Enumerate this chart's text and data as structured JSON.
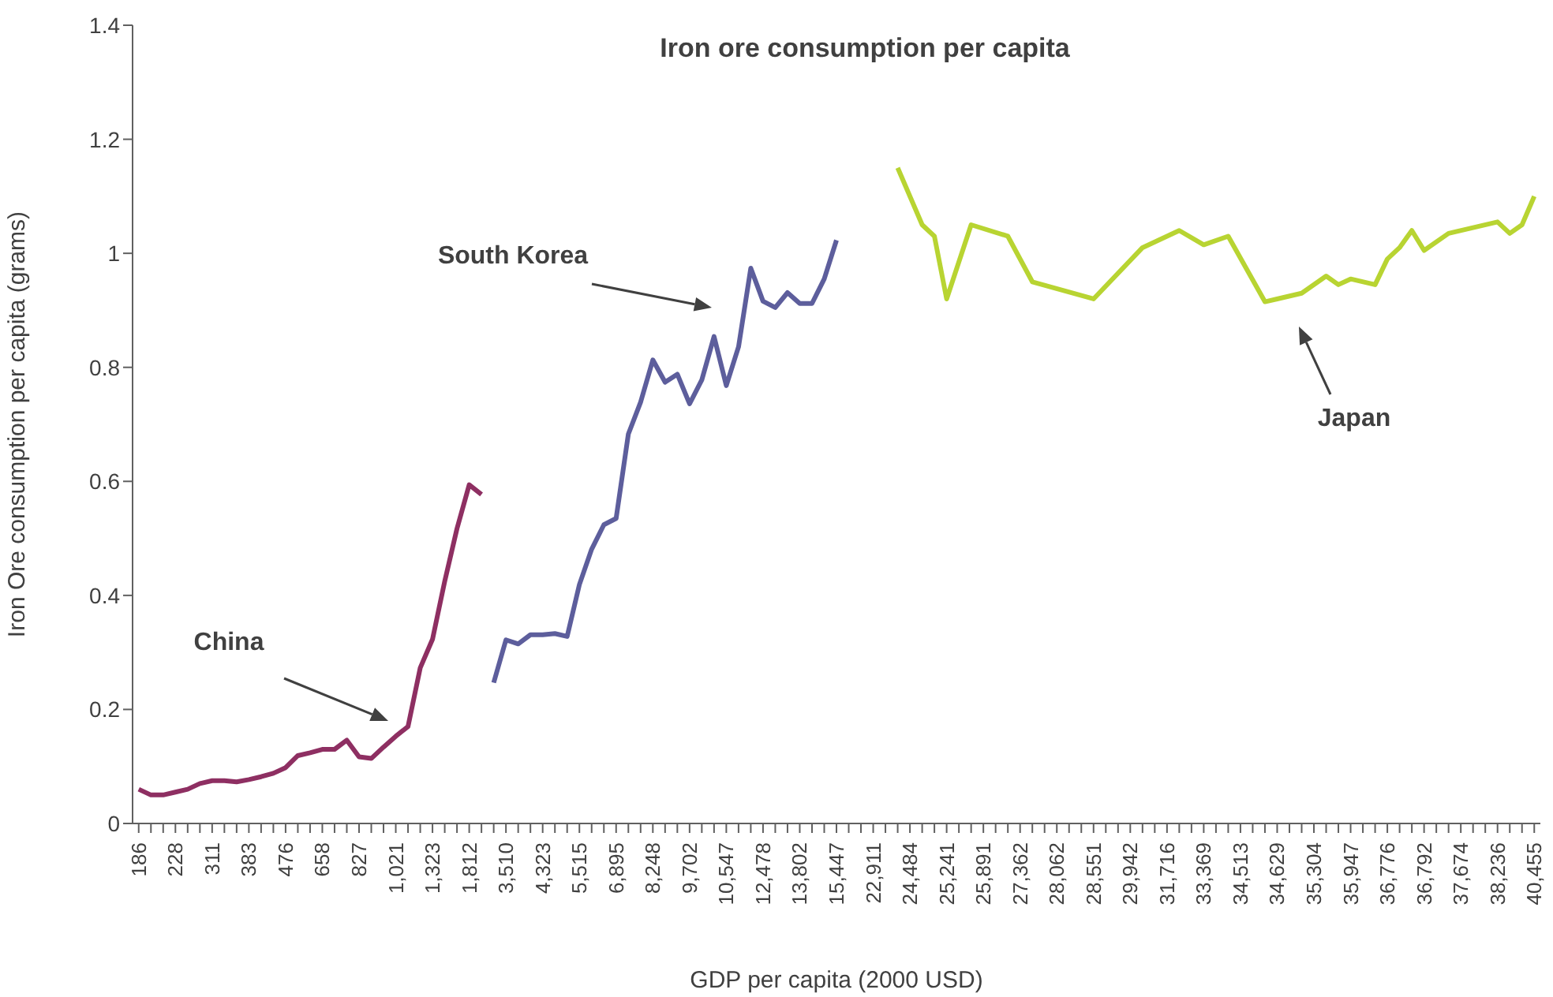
{
  "chart_data": {
    "type": "line",
    "title": "Iron ore consumption per capita",
    "xlabel": "GDP per capita (2000 USD)",
    "ylabel": "Iron Ore consumption per capita (grams)",
    "categories": [
      "186",
      null,
      null,
      "228",
      null,
      null,
      "311",
      null,
      null,
      "383",
      null,
      null,
      "476",
      null,
      null,
      "658",
      null,
      null,
      "827",
      null,
      null,
      "1,021",
      null,
      null,
      "1,323",
      null,
      null,
      "1,812",
      null,
      null,
      "3,510",
      null,
      null,
      "4,323",
      null,
      null,
      "5,515",
      null,
      null,
      "6,895",
      null,
      null,
      "8,248",
      null,
      null,
      "9,702",
      null,
      null,
      "10,547",
      null,
      null,
      "12,478",
      null,
      null,
      "13,802",
      null,
      null,
      "15,447",
      null,
      null,
      "22,911",
      null,
      null,
      "24,484",
      null,
      null,
      "25,241",
      null,
      null,
      "25,891",
      null,
      null,
      "27,362",
      null,
      null,
      "28,062",
      null,
      null,
      "28,551",
      null,
      null,
      "29,942",
      null,
      null,
      "31,716",
      null,
      null,
      "33,369",
      null,
      null,
      "34,513",
      null,
      null,
      "34,629",
      null,
      null,
      "35,304",
      null,
      null,
      "35,947",
      null,
      null,
      "36,776",
      null,
      null,
      "36,792",
      null,
      null,
      "37,674",
      null,
      null,
      "38,236",
      null,
      null,
      "40,455"
    ],
    "series": [
      {
        "color": "#8e2f62",
        "values": [
          0.06,
          0.05,
          0.05,
          0.055,
          0.06,
          0.07,
          0.075,
          0.075,
          0.073,
          0.077,
          0.082,
          0.088,
          0.098,
          0.119,
          0.124,
          0.13,
          0.13,
          0.146,
          0.117,
          0.114,
          0.134,
          0.153,
          0.17,
          0.273,
          0.323,
          0.425,
          0.517,
          0.594,
          0.577,
          null,
          null,
          null,
          null,
          null,
          null,
          null,
          null,
          null,
          null,
          null,
          null,
          null,
          null,
          null,
          null,
          null,
          null,
          null,
          null,
          null,
          null,
          null,
          null,
          null,
          null,
          null,
          null,
          null,
          null,
          null,
          null,
          null,
          null,
          null,
          null,
          null,
          null,
          null,
          null,
          null,
          null,
          null,
          null,
          null,
          null,
          null,
          null,
          null,
          null,
          null,
          null,
          null,
          null,
          null,
          null,
          null,
          null,
          null,
          null,
          null,
          null,
          null,
          null,
          null,
          null,
          null,
          null,
          null,
          null,
          null,
          null,
          null,
          null,
          null,
          null,
          null,
          null,
          null,
          null,
          null,
          null,
          null,
          null,
          null,
          null
        ]
      },
      {
        "color": "#5d5e9c",
        "values": [
          null,
          null,
          null,
          null,
          null,
          null,
          null,
          null,
          null,
          null,
          null,
          null,
          null,
          null,
          null,
          null,
          null,
          null,
          null,
          null,
          null,
          null,
          null,
          null,
          null,
          null,
          null,
          null,
          null,
          0.247,
          0.322,
          0.315,
          0.331,
          0.331,
          0.333,
          0.328,
          0.419,
          0.481,
          0.524,
          0.535,
          0.683,
          0.739,
          0.813,
          0.774,
          0.788,
          0.736,
          0.778,
          0.854,
          0.768,
          0.836,
          0.974,
          0.916,
          0.905,
          0.931,
          0.912,
          0.912,
          0.955,
          1.023,
          null,
          null,
          null,
          null,
          null,
          null,
          null,
          null,
          null,
          null,
          null,
          null,
          null,
          null,
          null,
          null,
          null,
          null,
          null,
          null,
          null,
          null,
          null,
          null,
          null,
          null,
          null,
          null,
          null,
          null,
          null,
          null,
          null,
          null,
          null,
          null,
          null,
          null,
          null,
          null,
          null,
          null,
          null,
          null,
          null,
          null,
          null,
          null,
          null,
          null,
          null,
          null,
          null,
          null,
          null,
          null,
          null
        ]
      },
      {
        "color": "#b8d432",
        "values": [
          null,
          null,
          null,
          null,
          null,
          null,
          null,
          null,
          null,
          null,
          null,
          null,
          null,
          null,
          null,
          null,
          null,
          null,
          null,
          null,
          null,
          null,
          null,
          null,
          null,
          null,
          null,
          null,
          null,
          null,
          null,
          null,
          null,
          null,
          null,
          null,
          null,
          null,
          null,
          null,
          null,
          null,
          null,
          null,
          null,
          null,
          null,
          null,
          null,
          null,
          null,
          null,
          null,
          null,
          null,
          null,
          null,
          null,
          null,
          null,
          null,
          null,
          1.15,
          null,
          1.05,
          1.03,
          0.92,
          null,
          1.05,
          null,
          null,
          1.03,
          null,
          0.95,
          null,
          null,
          null,
          null,
          0.92,
          null,
          null,
          null,
          1.01,
          null,
          null,
          1.04,
          null,
          1.015,
          null,
          1.03,
          null,
          null,
          0.915,
          0.92,
          null,
          0.93,
          null,
          0.96,
          0.945,
          0.955,
          null,
          0.945,
          0.99,
          1.01,
          1.04,
          1.005,
          null,
          1.035,
          null,
          null,
          null,
          1.055,
          1.035,
          1.05,
          1.1
        ]
      }
    ],
    "annotations": [
      "China",
      "South Korea",
      "Japan"
    ],
    "ylim": [
      0,
      1.4
    ],
    "yticks": [
      0,
      0.2,
      0.4,
      0.6,
      0.8,
      1,
      1.2,
      1.4
    ],
    "grid": false,
    "legend": false,
    "marker": "none",
    "line_style": "solid"
  }
}
